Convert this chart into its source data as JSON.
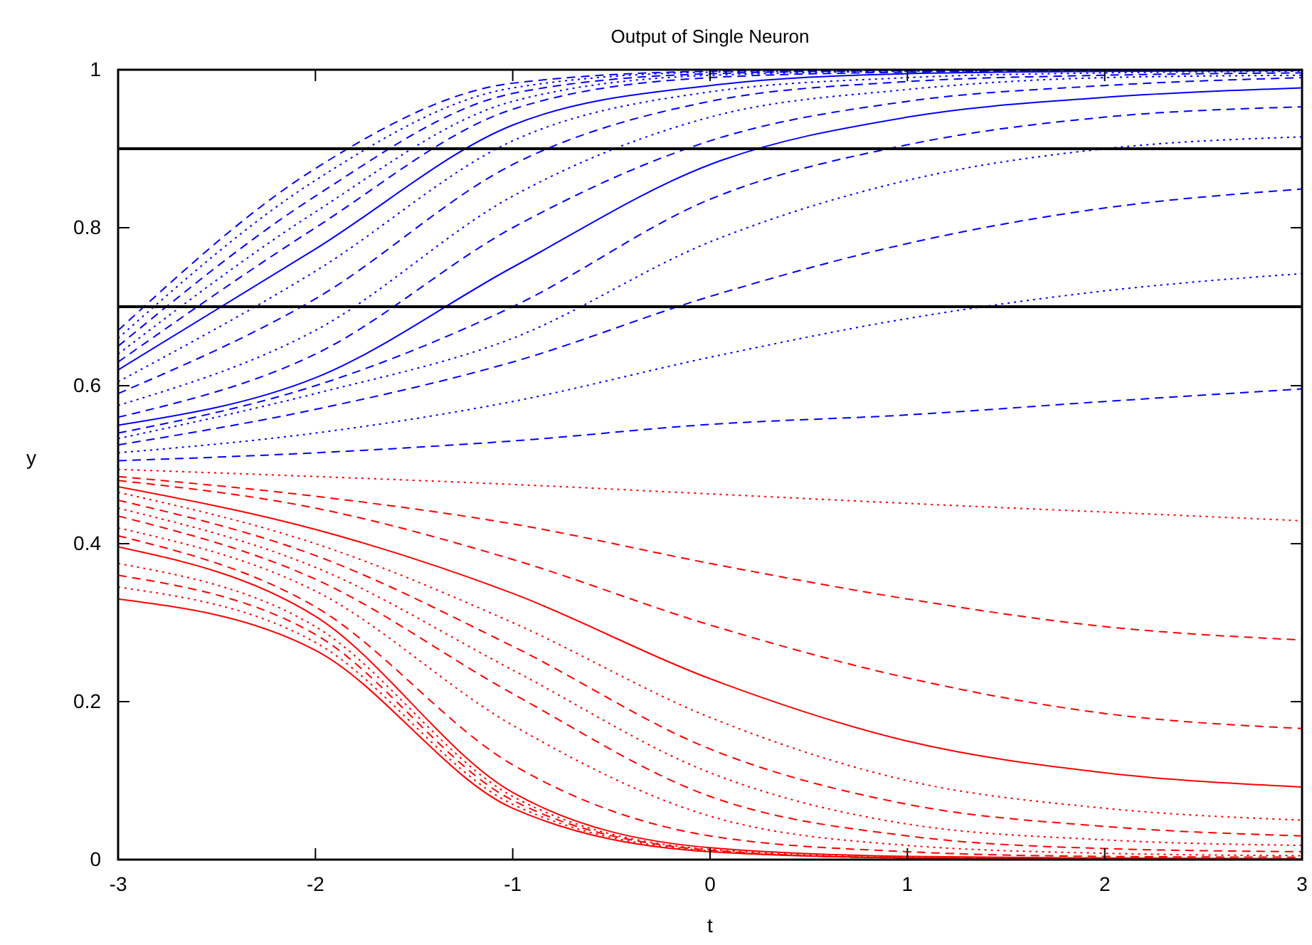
{
  "chart_data": {
    "type": "line",
    "title": "Output of Single Neuron",
    "xlabel": "t",
    "ylabel": "y",
    "x": [
      -3,
      -2,
      -1,
      0,
      1,
      2,
      3
    ],
    "xlim": [
      -3,
      3
    ],
    "xticks": [
      -3,
      -2,
      -1,
      0,
      1,
      2,
      3
    ],
    "ylim": [
      0,
      1
    ],
    "yticks": [
      0,
      0.2,
      0.4,
      0.6,
      0.8,
      1
    ],
    "grid": false,
    "ref_lines": [
      {
        "axis": "y",
        "value": 0.9,
        "color": "#000000"
      },
      {
        "axis": "y",
        "value": 0.7,
        "color": "#000000"
      }
    ],
    "series": [
      {
        "color": "#0000ff",
        "line_style": "dashed",
        "values": [
          0.505,
          0.515,
          0.53,
          0.551,
          0.563,
          0.58,
          0.596
        ]
      },
      {
        "color": "#0000ff",
        "line_style": "dotted",
        "values": [
          0.515,
          0.54,
          0.58,
          0.636,
          0.685,
          0.72,
          0.742
        ]
      },
      {
        "color": "#0000ff",
        "line_style": "dashed",
        "values": [
          0.525,
          0.57,
          0.63,
          0.713,
          0.78,
          0.825,
          0.849
        ]
      },
      {
        "color": "#0000ff",
        "line_style": "dotted",
        "values": [
          0.533,
          0.59,
          0.66,
          0.782,
          0.86,
          0.9,
          0.915
        ]
      },
      {
        "color": "#0000ff",
        "line_style": "dashed",
        "values": [
          0.54,
          0.6,
          0.7,
          0.836,
          0.905,
          0.94,
          0.953
        ]
      },
      {
        "color": "#0000ff",
        "line_style": "solid",
        "values": [
          0.55,
          0.61,
          0.75,
          0.88,
          0.94,
          0.965,
          0.977
        ]
      },
      {
        "color": "#0000ff",
        "line_style": "dashed",
        "values": [
          0.56,
          0.64,
          0.8,
          0.91,
          0.96,
          0.98,
          0.99
        ]
      },
      {
        "color": "#0000ff",
        "line_style": "dotted",
        "values": [
          0.575,
          0.67,
          0.84,
          0.94,
          0.975,
          0.99,
          0.993
        ]
      },
      {
        "color": "#0000ff",
        "line_style": "dashed",
        "values": [
          0.59,
          0.71,
          0.88,
          0.96,
          0.985,
          0.993,
          0.996
        ]
      },
      {
        "color": "#0000ff",
        "line_style": "dotted",
        "values": [
          0.605,
          0.745,
          0.91,
          0.972,
          0.99,
          0.996,
          0.998
        ]
      },
      {
        "color": "#0000ff",
        "line_style": "solid",
        "values": [
          0.62,
          0.773,
          0.93,
          0.98,
          0.995,
          0.998,
          0.999
        ]
      },
      {
        "color": "#0000ff",
        "line_style": "dashed",
        "values": [
          0.63,
          0.8,
          0.95,
          0.99,
          0.997,
          0.999,
          1
        ]
      },
      {
        "color": "#0000ff",
        "line_style": "dotted",
        "values": [
          0.64,
          0.82,
          0.96,
          0.993,
          0.998,
          0.999,
          1
        ]
      },
      {
        "color": "#0000ff",
        "line_style": "dashed",
        "values": [
          0.65,
          0.84,
          0.97,
          0.995,
          0.999,
          1,
          1
        ]
      },
      {
        "color": "#0000ff",
        "line_style": "dotted",
        "values": [
          0.66,
          0.86,
          0.977,
          0.997,
          0.999,
          1,
          1
        ]
      },
      {
        "color": "#0000ff",
        "line_style": "dashed",
        "values": [
          0.67,
          0.875,
          0.983,
          0.998,
          1,
          1,
          1
        ]
      },
      {
        "color": "#ff0000",
        "line_style": "dotted",
        "values": [
          0.494,
          0.485,
          0.475,
          0.463,
          0.451,
          0.44,
          0.429
        ]
      },
      {
        "color": "#ff0000",
        "line_style": "dashed",
        "values": [
          0.485,
          0.46,
          0.425,
          0.375,
          0.33,
          0.295,
          0.278
        ]
      },
      {
        "color": "#ff0000",
        "line_style": "dashed",
        "values": [
          0.48,
          0.445,
          0.38,
          0.297,
          0.23,
          0.185,
          0.166
        ]
      },
      {
        "color": "#ff0000",
        "line_style": "solid",
        "values": [
          0.472,
          0.418,
          0.337,
          0.229,
          0.15,
          0.11,
          0.092
        ]
      },
      {
        "color": "#ff0000",
        "line_style": "dotted",
        "values": [
          0.465,
          0.4,
          0.3,
          0.18,
          0.1,
          0.065,
          0.05
        ]
      },
      {
        "color": "#ff0000",
        "line_style": "dashed",
        "values": [
          0.455,
          0.385,
          0.27,
          0.14,
          0.07,
          0.042,
          0.03
        ]
      },
      {
        "color": "#ff0000",
        "line_style": "dotted",
        "values": [
          0.445,
          0.37,
          0.24,
          0.11,
          0.045,
          0.025,
          0.018
        ]
      },
      {
        "color": "#ff0000",
        "line_style": "dashed",
        "values": [
          0.435,
          0.355,
          0.21,
          0.08,
          0.03,
          0.014,
          0.01
        ]
      },
      {
        "color": "#ff0000",
        "line_style": "dotted",
        "values": [
          0.42,
          0.34,
          0.17,
          0.055,
          0.018,
          0.008,
          0.005
        ]
      },
      {
        "color": "#ff0000",
        "line_style": "dashed",
        "values": [
          0.41,
          0.32,
          0.12,
          0.03,
          0.01,
          0.004,
          0.003
        ]
      },
      {
        "color": "#ff0000",
        "line_style": "solid",
        "values": [
          0.396,
          0.308,
          0.085,
          0.015,
          0.004,
          0.002,
          0.001
        ]
      },
      {
        "color": "#ff0000",
        "line_style": "dotted",
        "values": [
          0.375,
          0.295,
          0.08,
          0.013,
          0.003,
          0.001,
          0
        ]
      },
      {
        "color": "#ff0000",
        "line_style": "dashed",
        "values": [
          0.36,
          0.285,
          0.075,
          0.012,
          0.002,
          0.001,
          0
        ]
      },
      {
        "color": "#ff0000",
        "line_style": "dotted",
        "values": [
          0.345,
          0.275,
          0.07,
          0.011,
          0.002,
          0,
          0
        ]
      },
      {
        "color": "#ff0000",
        "line_style": "solid",
        "values": [
          0.33,
          0.265,
          0.065,
          0.01,
          0.002,
          0,
          0
        ]
      }
    ]
  }
}
